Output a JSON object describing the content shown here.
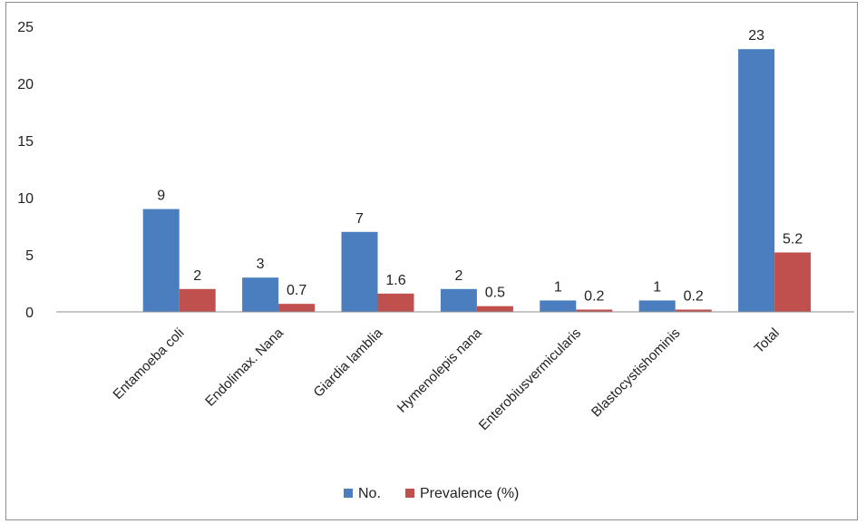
{
  "chart_data": {
    "type": "bar",
    "title": "",
    "xlabel": "",
    "ylabel": "",
    "categories": [
      "Entamoeba coli",
      "Endolimax. Nana",
      "Giardia lamblia",
      "Hymenolepis nana",
      "Enterobiusvermicularis",
      "Blastocystishominis",
      "Total"
    ],
    "series": [
      {
        "name": "No.",
        "color": "#4a7ebf",
        "values": [
          9,
          3,
          7,
          2,
          1,
          1,
          23
        ],
        "labels": [
          "9",
          "3",
          "7",
          "2",
          "1",
          "1",
          "23"
        ]
      },
      {
        "name": "Prevalence (%)",
        "color": "#c0504d",
        "values": [
          2,
          0.7,
          1.6,
          0.5,
          0.2,
          0.2,
          5.2
        ],
        "labels": [
          "2",
          "0.7",
          "1.6",
          "0.5",
          "0.2",
          "0.2",
          "5.2"
        ]
      }
    ],
    "ylim": [
      0,
      25
    ],
    "yticks": [
      0,
      5,
      10,
      15,
      20,
      25
    ],
    "grid": false,
    "legend_position": "bottom"
  }
}
